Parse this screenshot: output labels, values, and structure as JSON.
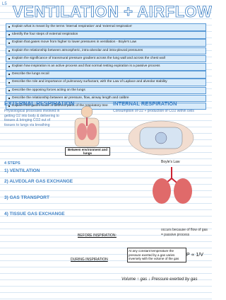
{
  "header": {
    "page_number": "L5",
    "title": "VENTILATION + AIRFLOW"
  },
  "objectives": [
    "Explain what is meant by the terms 'internal respiration' and 'external respiration'",
    "Identify the four steps of external respiration",
    "Explain that gases move from higher to lower pressures in ventilation - Boyle's Law",
    "Explain the relationship between atmospheric, intra-alveolar and intra-pleural pressures",
    "Explain the significance of transmural pressure gradient across the lung wall and across the chest wall",
    "Explain how inspiration is an active process and that normal resting expiration is a passive process",
    "Describe the lungs recoil",
    "Describe the role and importance of pulmonary surfactant, with the Law of Laplace and alveolar stability",
    "Describe the opposing forces acting on the lungs",
    "Describe the relationship between air pressure, flow, airway length and calibre",
    "Explain how gases move in different parts of the respiratory tree"
  ],
  "external": {
    "heading": "EXTERNAL RESPIRATION",
    "text": "Physiological processes involved in getting O2 into body & delivering to tissues & bringing CO2 out of tissues to lungs via breathing",
    "figure_caption": "Between environment and lungs"
  },
  "internal": {
    "heading": "INTERNAL RESPIRATION",
    "text": "Consumption of O2 + production of CO2 within cells",
    "figure_caption": "Boyle's Law"
  },
  "steps": {
    "heading": "4 STEPS",
    "items": [
      "1) VENTILATION",
      "2) ALVEOLAR GAS EXCHANGE",
      "3) GAS TRANSPORT",
      "4) TISSUE GAS EXCHANGE"
    ]
  },
  "notes": {
    "before": "BEFORE INSPIRATION:",
    "during": "DURING INSPIRATION",
    "boyle_box": "At any constant temperature the pressure exerted by a gas varies inversely with the volume of the gas",
    "formula": "P ∝ 1/V",
    "summary": "Volume ↑ gas ↓ Pressure exerted by gas",
    "passive": "occurs because of flow of gas = passive process"
  }
}
